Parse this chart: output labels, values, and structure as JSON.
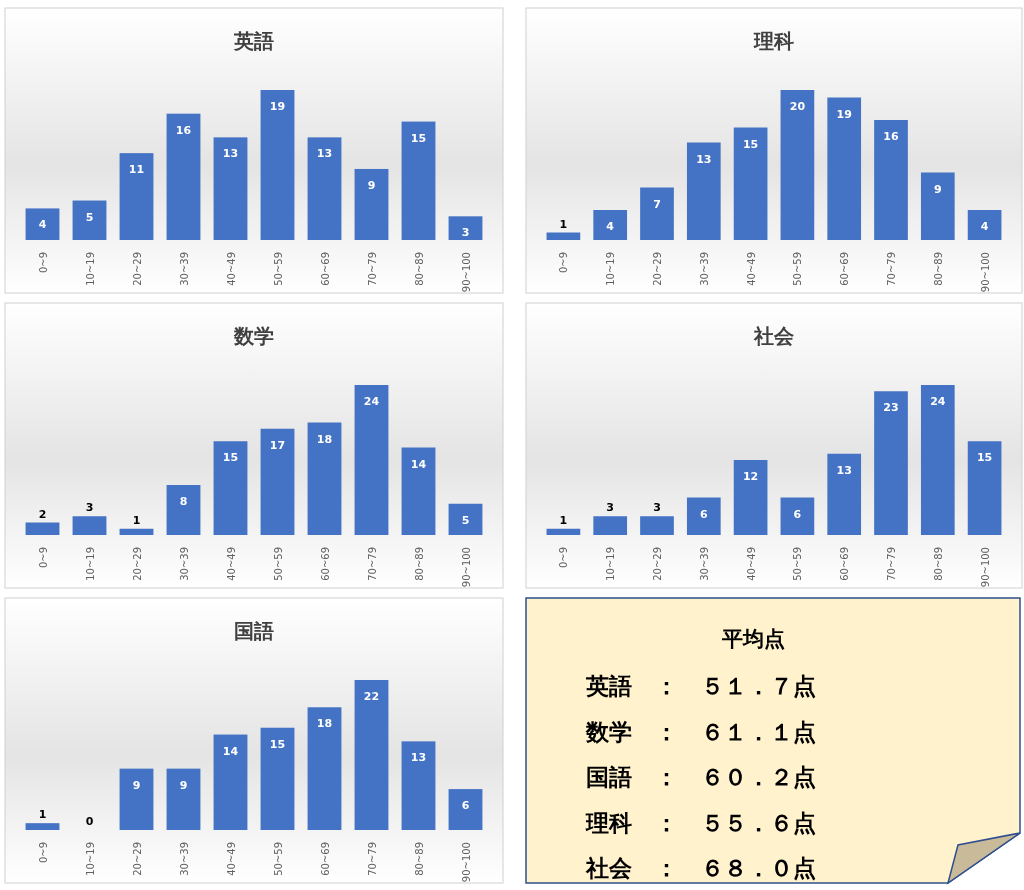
{
  "chart_data": [
    {
      "type": "bar",
      "title": "英語",
      "categories": [
        "0~9",
        "10~19",
        "20~29",
        "30~39",
        "40~49",
        "50~59",
        "60~69",
        "70~79",
        "80~89",
        "90~100"
      ],
      "values": [
        4,
        5,
        11,
        16,
        13,
        19,
        13,
        9,
        15,
        3
      ],
      "color": "#4472c4",
      "data_labels": true,
      "tick_labels": "x"
    },
    {
      "type": "bar",
      "title": "理科",
      "categories": [
        "0~9",
        "10~19",
        "20~29",
        "30~39",
        "40~49",
        "50~59",
        "60~69",
        "70~79",
        "80~89",
        "90~100"
      ],
      "values": [
        1,
        4,
        7,
        13,
        15,
        20,
        19,
        16,
        9,
        4
      ],
      "color": "#4472c4",
      "data_labels": true,
      "tick_labels": "x"
    },
    {
      "type": "bar",
      "title": "数学",
      "categories": [
        "0~9",
        "10~19",
        "20~29",
        "30~39",
        "40~49",
        "50~59",
        "60~69",
        "70~79",
        "80~89",
        "90~100"
      ],
      "values": [
        2,
        3,
        1,
        8,
        15,
        17,
        18,
        24,
        14,
        5
      ],
      "color": "#4472c4",
      "data_labels": true,
      "tick_labels": "x"
    },
    {
      "type": "bar",
      "title": "社会",
      "categories": [
        "0~9",
        "10~19",
        "20~29",
        "30~39",
        "40~49",
        "50~59",
        "60~69",
        "70~79",
        "80~89",
        "90~100"
      ],
      "values": [
        1,
        3,
        3,
        6,
        12,
        6,
        13,
        23,
        24,
        15
      ],
      "color": "#4472c4",
      "data_labels": true,
      "tick_labels": "x"
    },
    {
      "type": "bar",
      "title": "国語",
      "categories": [
        "0~9",
        "10~19",
        "20~29",
        "30~39",
        "40~49",
        "50~59",
        "60~69",
        "70~79",
        "80~89",
        "90~100"
      ],
      "values": [
        1,
        0,
        9,
        9,
        14,
        15,
        18,
        22,
        13,
        6
      ],
      "color": "#4472c4",
      "data_labels": true,
      "tick_labels": "x"
    },
    {
      "type": "other",
      "title": "平均点",
      "annotations": [
        "英語　：　５１．７点",
        "数学　：　６１．１点",
        "国語　：　６０．２点",
        "理科　：　５５．６点",
        "社会　：　６８．０点"
      ]
    }
  ]
}
